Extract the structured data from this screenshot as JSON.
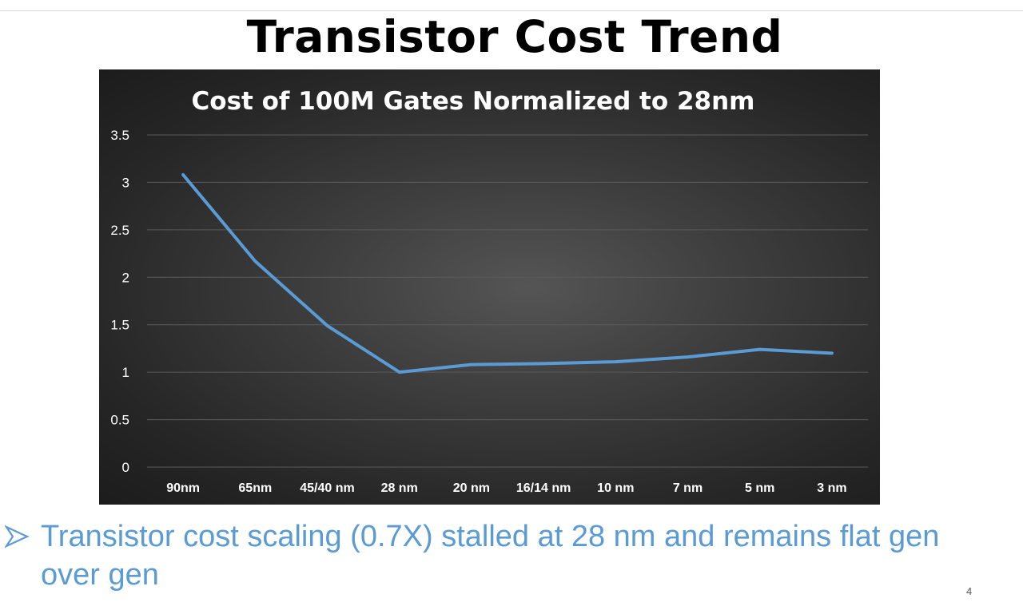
{
  "slide": {
    "title": "Transistor Cost Trend",
    "bullet": "Transistor cost scaling (0.7X) stalled at 28 nm and remains flat gen over gen",
    "page_number": "4",
    "accent_color": "#5b9bd5"
  },
  "chart_data": {
    "type": "line",
    "title": "Cost of 100M Gates Normalized to 28nm",
    "xlabel": "",
    "ylabel": "",
    "categories": [
      "90nm",
      "65nm",
      "45/40 nm",
      "28 nm",
      "20 nm",
      "16/14 nm",
      "10 nm",
      "7 nm",
      "5 nm",
      "3 nm"
    ],
    "series": [
      {
        "values": [
          3.08,
          2.17,
          1.49,
          1.0,
          1.08,
          1.09,
          1.11,
          1.16,
          1.24,
          1.2
        ],
        "color": "#5b9bd5"
      }
    ],
    "ylim": [
      0,
      3.5
    ],
    "yticks": [
      "0",
      "0.5",
      "1",
      "1.5",
      "2",
      "2.5",
      "3",
      "3.5"
    ],
    "grid": true,
    "background": "#3a3a3a"
  }
}
